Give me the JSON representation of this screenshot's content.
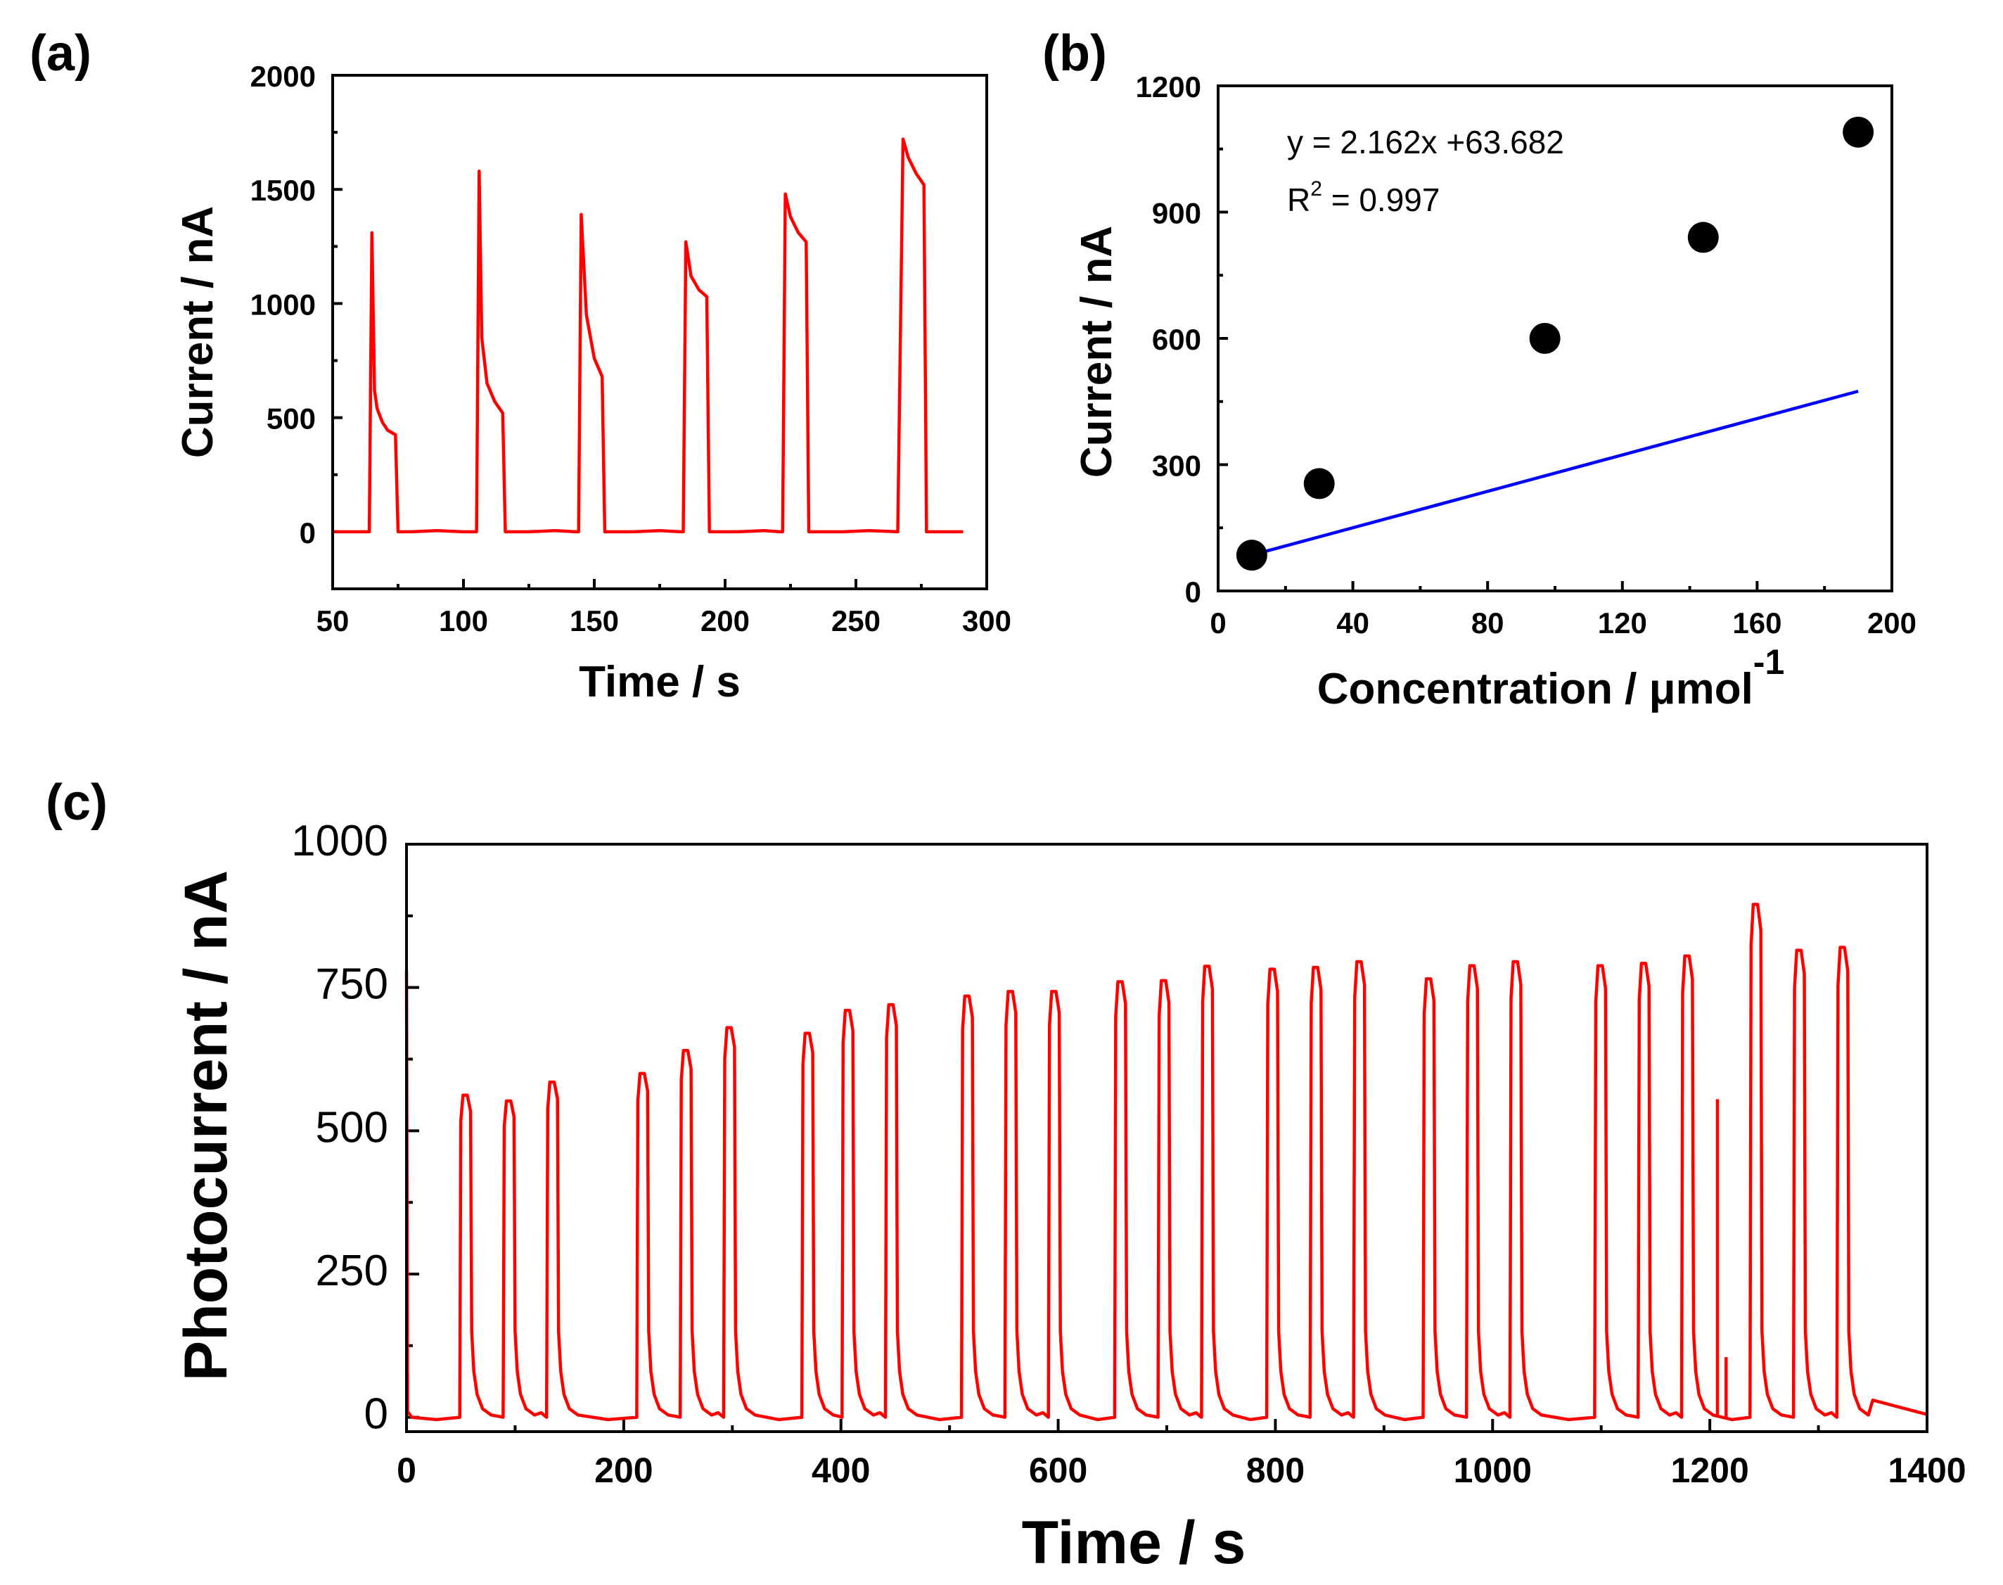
{
  "figure": {
    "panels": [
      {
        "id": "a",
        "label": "(a)"
      },
      {
        "id": "b",
        "label": "(b)"
      },
      {
        "id": "c",
        "label": "(c)"
      }
    ]
  },
  "colors": {
    "trace": "#ff0000",
    "fit_line": "#0000ff",
    "marker": "#000000"
  },
  "chart_data": [
    {
      "panel": "a",
      "type": "line",
      "xlabel": "Time / s",
      "ylabel": "Current / nA",
      "xlim": [
        50,
        300
      ],
      "ylim": [
        -250,
        2000
      ],
      "xticks": [
        50,
        100,
        150,
        200,
        250,
        300
      ],
      "yticks": [
        0,
        500,
        1000,
        1500,
        2000
      ],
      "series": [
        {
          "color": "#ff0000",
          "x": [
            50,
            64,
            65,
            66,
            67,
            69,
            71,
            74,
            75,
            80,
            90,
            100,
            105,
            106,
            107,
            109,
            112,
            115,
            116,
            125,
            135,
            143,
            144,
            145,
            147,
            150,
            153,
            154,
            165,
            175,
            183,
            184,
            185,
            187,
            190,
            193,
            194,
            205,
            215,
            221,
            222,
            223,
            225,
            228,
            231,
            232,
            245,
            255,
            266,
            268,
            270,
            273,
            276,
            277,
            285,
            291
          ],
          "y": [
            0,
            0,
            1310,
            620,
            540,
            480,
            445,
            425,
            0,
            0,
            5,
            0,
            0,
            1580,
            850,
            650,
            570,
            520,
            0,
            0,
            5,
            0,
            0,
            1390,
            950,
            760,
            680,
            0,
            0,
            5,
            0,
            0,
            1270,
            1120,
            1060,
            1030,
            0,
            0,
            5,
            0,
            0,
            1480,
            1380,
            1310,
            1270,
            0,
            0,
            5,
            0,
            1720,
            1640,
            1570,
            1520,
            0,
            0,
            0
          ]
        }
      ]
    },
    {
      "panel": "b",
      "type": "scatter",
      "xlabel": "Concentration / μmol",
      "xlabel_sup": "-1",
      "ylabel": "Current / nA",
      "xlim": [
        0,
        200
      ],
      "ylim": [
        0,
        1200
      ],
      "xticks": [
        0,
        40,
        80,
        120,
        160,
        200
      ],
      "yticks": [
        0,
        300,
        600,
        900,
        1200
      ],
      "points": {
        "x": [
          10,
          30,
          97,
          144,
          190
        ],
        "y": [
          85,
          255,
          600,
          840,
          1090
        ]
      },
      "fit": {
        "slope": 2.162,
        "intercept": 63.682,
        "x_range": [
          10,
          190
        ]
      },
      "annotation": {
        "equation": "y = 2.162x +63.682",
        "r2_prefix": "R",
        "r2_sup": "2",
        "r2_suffix": " = 0.997"
      }
    },
    {
      "panel": "c",
      "type": "line",
      "xlabel": "Time / s",
      "ylabel": "Photocurrent / nA",
      "xlim": [
        0,
        1400
      ],
      "ylim": [
        -25,
        1000
      ],
      "xticks": [
        0,
        200,
        400,
        600,
        800,
        1000,
        1200,
        1400
      ],
      "yticks": [
        0,
        250,
        500,
        750,
        1000
      ],
      "series": [
        {
          "color": "#ff0000",
          "pulses": [
            {
              "start": 50,
              "peak": 562,
              "end": 60
            },
            {
              "start": 90,
              "peak": 552,
              "end": 100
            },
            {
              "start": 130,
              "peak": 585,
              "end": 140
            },
            {
              "start": 213,
              "peak": 600,
              "end": 223
            },
            {
              "start": 253,
              "peak": 640,
              "end": 263
            },
            {
              "start": 293,
              "peak": 680,
              "end": 303
            },
            {
              "start": 365,
              "peak": 670,
              "end": 375
            },
            {
              "start": 402,
              "peak": 710,
              "end": 412
            },
            {
              "start": 442,
              "peak": 720,
              "end": 452
            },
            {
              "start": 512,
              "peak": 735,
              "end": 522
            },
            {
              "start": 552,
              "peak": 743,
              "end": 562
            },
            {
              "start": 592,
              "peak": 743,
              "end": 602
            },
            {
              "start": 653,
              "peak": 760,
              "end": 663
            },
            {
              "start": 693,
              "peak": 762,
              "end": 703
            },
            {
              "start": 733,
              "peak": 787,
              "end": 743
            },
            {
              "start": 793,
              "peak": 782,
              "end": 803
            },
            {
              "start": 833,
              "peak": 785,
              "end": 843
            },
            {
              "start": 873,
              "peak": 795,
              "end": 883
            },
            {
              "start": 937,
              "peak": 765,
              "end": 947
            },
            {
              "start": 977,
              "peak": 788,
              "end": 987
            },
            {
              "start": 1017,
              "peak": 795,
              "end": 1027
            },
            {
              "start": 1095,
              "peak": 788,
              "end": 1105
            },
            {
              "start": 1135,
              "peak": 792,
              "end": 1145
            },
            {
              "start": 1175,
              "peak": 805,
              "end": 1185
            },
            {
              "start": 1238,
              "peak": 895,
              "end": 1248
            },
            {
              "start": 1278,
              "peak": 815,
              "end": 1288
            },
            {
              "start": 1318,
              "peak": 820,
              "end": 1328
            }
          ],
          "spikes": [
            {
              "x": 1207,
              "y": 555
            },
            {
              "x": 1215,
              "y": 105
            }
          ]
        }
      ]
    }
  ]
}
